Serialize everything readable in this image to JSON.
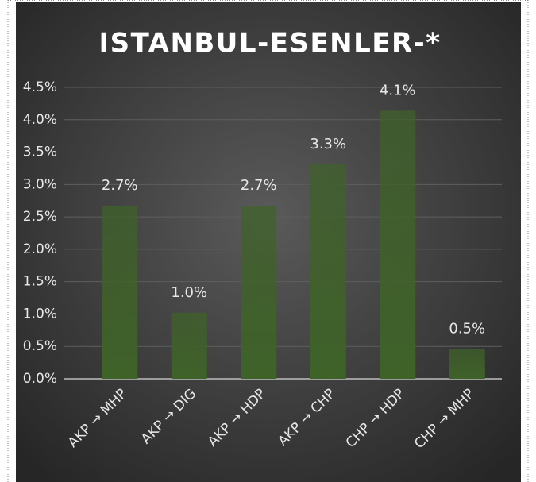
{
  "chart_data": {
    "type": "bar",
    "title": "ISTANBUL-ESENLER-*",
    "categories": [
      "AKP → MHP",
      "AKP → DIG",
      "AKP → HDP",
      "AKP → CHP",
      "CHP → HDP",
      "CHP → MHP"
    ],
    "values": [
      2.67,
      1.02,
      2.67,
      3.31,
      4.14,
      0.46
    ],
    "value_labels": [
      "2.7%",
      "1.0%",
      "2.7%",
      "3.3%",
      "4.1%",
      "0.5%"
    ],
    "color": "#3f6229",
    "ylim": [
      0,
      4.5
    ],
    "yticks": [
      {
        "value": 0,
        "label": "0.0%"
      },
      {
        "value": 0.5,
        "label": "0.5%"
      },
      {
        "value": 1,
        "label": "1.0%"
      },
      {
        "value": 1.5,
        "label": "1.5%"
      },
      {
        "value": 2,
        "label": "2.0%"
      },
      {
        "value": 2.5,
        "label": "2.5%"
      },
      {
        "value": 3,
        "label": "3.0%"
      },
      {
        "value": 3.5,
        "label": "3.5%"
      },
      {
        "value": 4,
        "label": "4.0%"
      },
      {
        "value": 4.5,
        "label": "4.5%"
      }
    ],
    "grid": true
  }
}
